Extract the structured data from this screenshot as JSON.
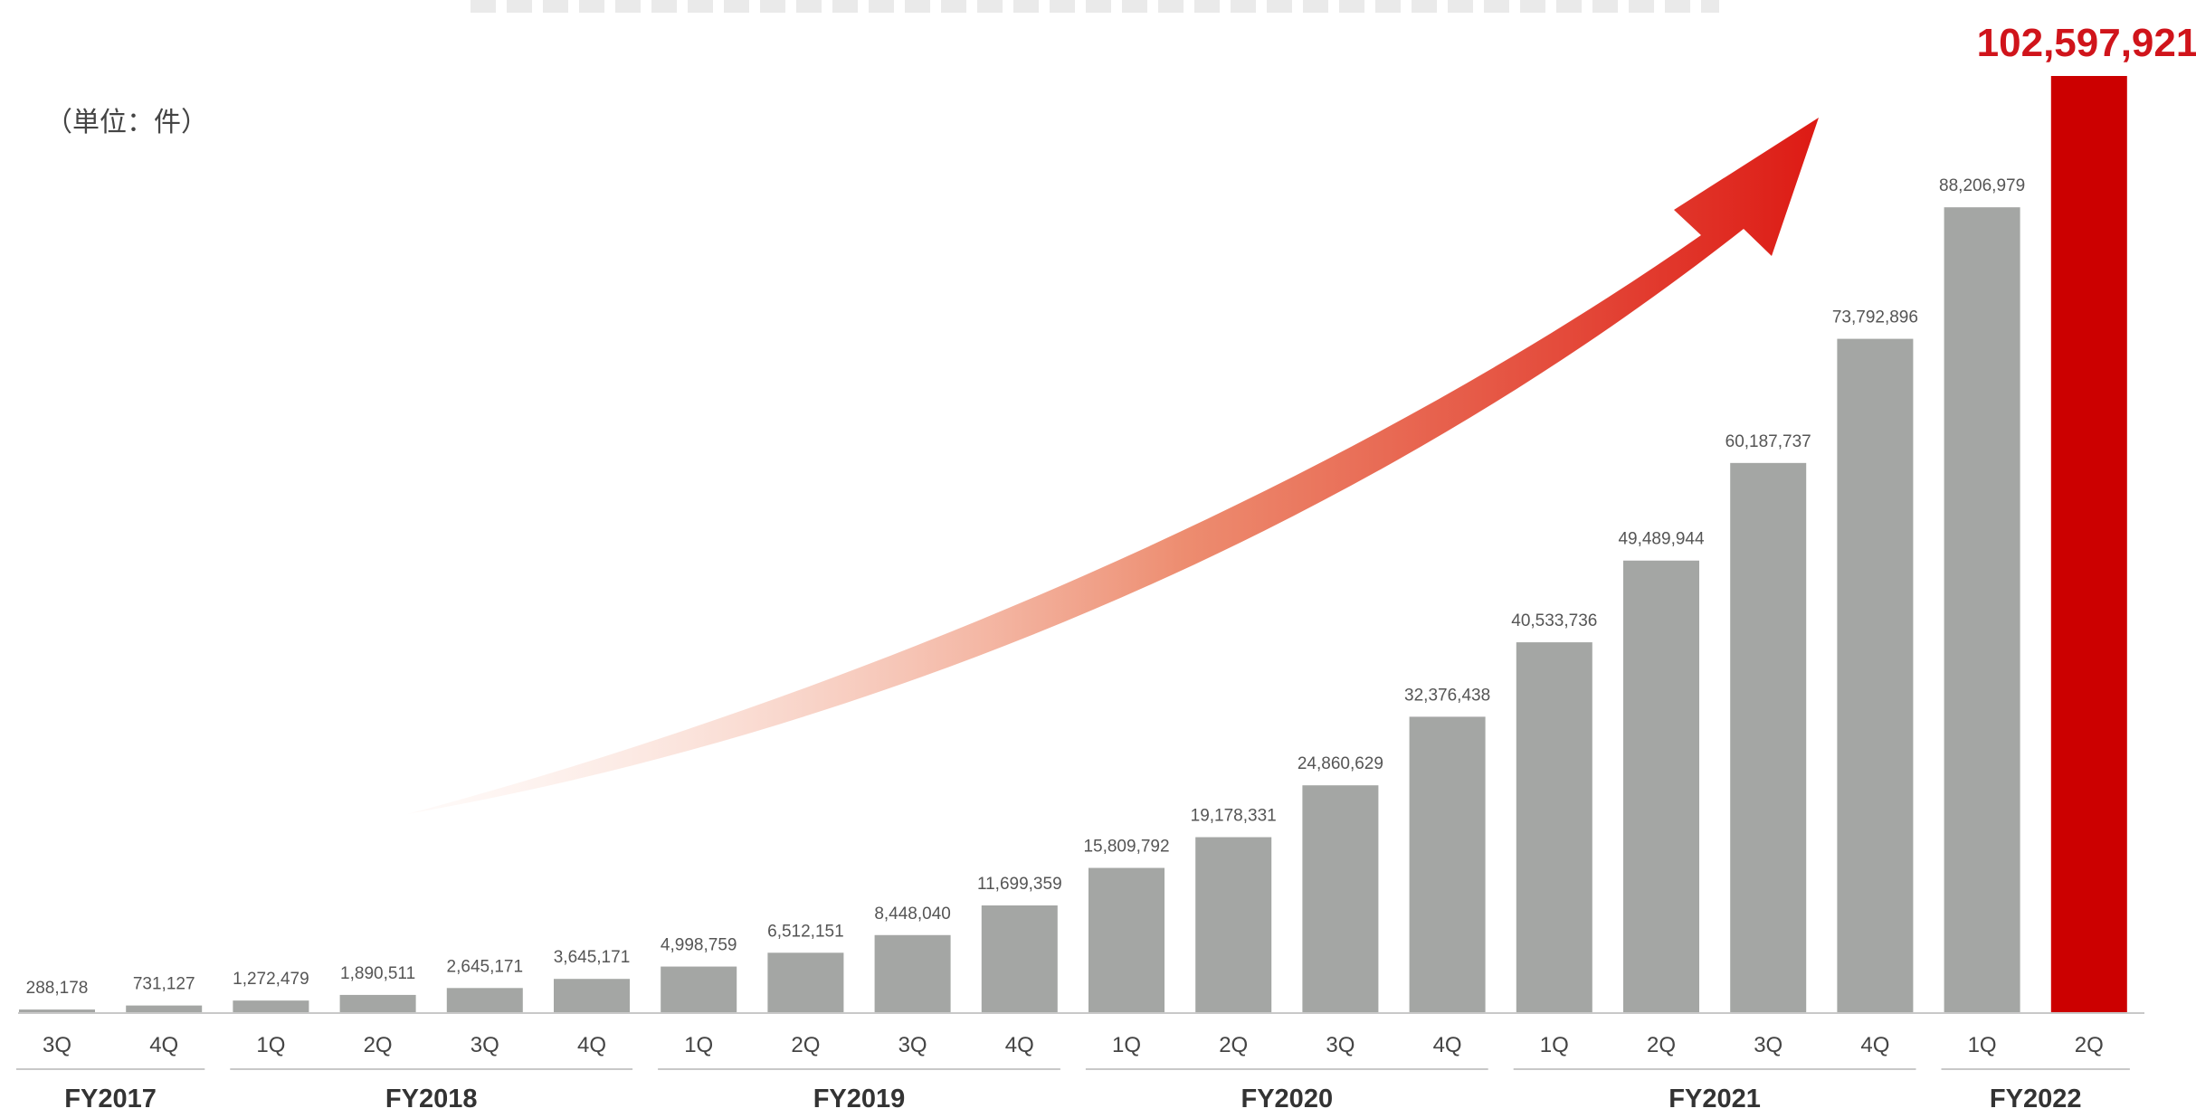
{
  "unit_label": "（単位：件）",
  "colors": {
    "bar": "#a4a6a4",
    "highlight_bar": "#cc0000",
    "highlight_label": "#d0141b",
    "label": "#555555",
    "axis_text": "#444444",
    "rule": "#c8c8c8",
    "arrow_start": "#fbe0d6",
    "arrow_end": "#dd1a14"
  },
  "chart_data": {
    "type": "bar",
    "categories": [
      "3Q",
      "4Q",
      "1Q",
      "2Q",
      "3Q",
      "4Q",
      "1Q",
      "2Q",
      "3Q",
      "4Q",
      "1Q",
      "2Q",
      "3Q",
      "4Q",
      "1Q",
      "2Q",
      "3Q",
      "4Q",
      "1Q",
      "2Q"
    ],
    "values": [
      288178,
      731127,
      1272479,
      1890511,
      2645171,
      3645171,
      4998759,
      6512151,
      8448040,
      11699359,
      15809792,
      19178331,
      24860629,
      32376438,
      40533736,
      49489944,
      60187737,
      73792896,
      88206979,
      102597921
    ],
    "value_labels": [
      "288,178",
      "731,127",
      "1,272,479",
      "1,890,511",
      "2,645,171",
      "3,645,171",
      "4,998,759",
      "6,512,151",
      "8,448,040",
      "11,699,359",
      "15,809,792",
      "19,178,331",
      "24,860,629",
      "32,376,438",
      "40,533,736",
      "49,489,944",
      "60,187,737",
      "73,792,896",
      "88,206,979",
      "102,597,921"
    ],
    "highlight_index": 19,
    "groups": [
      {
        "label": "FY2017",
        "start": 0,
        "end": 1
      },
      {
        "label": "FY2018",
        "start": 2,
        "end": 5
      },
      {
        "label": "FY2019",
        "start": 6,
        "end": 9
      },
      {
        "label": "FY2020",
        "start": 10,
        "end": 13
      },
      {
        "label": "FY2021",
        "start": 14,
        "end": 17
      },
      {
        "label": "FY2022",
        "start": 18,
        "end": 19
      }
    ],
    "ylim": [
      0,
      102597921
    ],
    "grid": false,
    "legend": "none",
    "annotation": "upward trend arrow"
  }
}
